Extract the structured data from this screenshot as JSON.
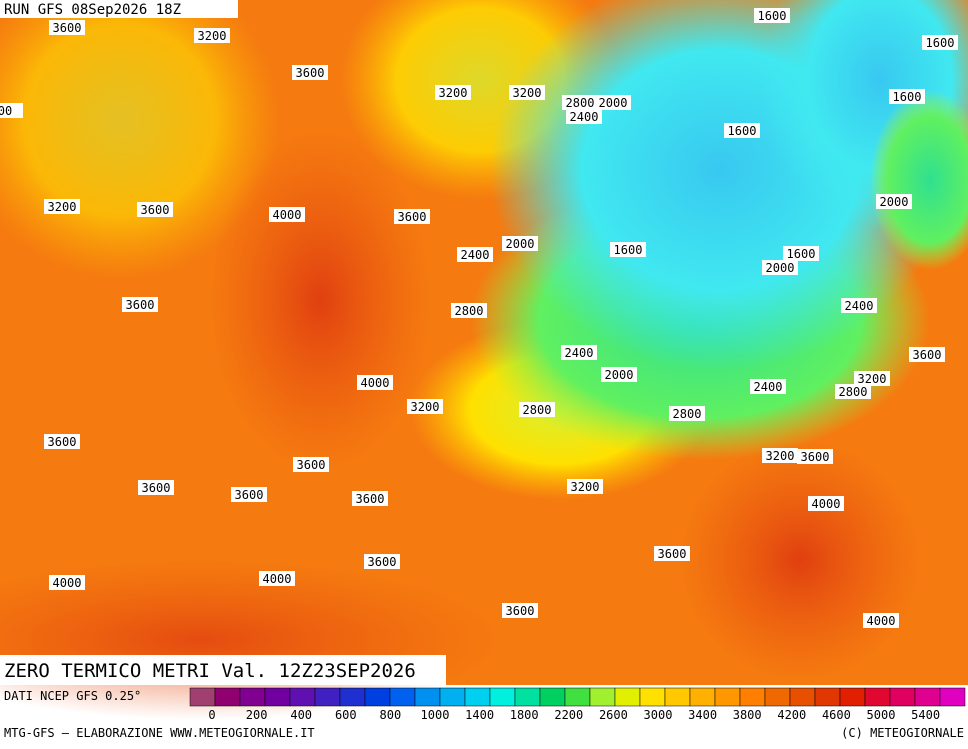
{
  "header": "RUN GFS 08Sep2026 18Z",
  "title": "ZERO TERMICO METRI Val. 12Z23SEP2026",
  "source": "DATI NCEP GFS 0.25°",
  "credit": "MTG-GFS — ELABORAZIONE WWW.METEOGIORNALE.IT",
  "copyright": "(C) METEOGIORNALE",
  "contour_labels": [
    3600,
    3200,
    3600,
    3200,
    3200,
    2800,
    2000,
    2400,
    1600,
    1600,
    1600,
    1600,
    "00",
    3200,
    3600,
    4000,
    3600,
    2000,
    2400,
    2000,
    1600,
    1600,
    2000,
    3600,
    2800,
    2400,
    2400,
    3600,
    4000,
    2000,
    2400,
    3200,
    2800,
    3200,
    2800,
    2800,
    3600,
    3600,
    3200,
    3600,
    3600,
    3600,
    3600,
    3200,
    4000,
    3600,
    3600,
    4000,
    4000,
    3600,
    4000
  ],
  "legend": {
    "ticks": [
      0,
      200,
      400,
      600,
      800,
      1000,
      1400,
      1800,
      2200,
      2600,
      3000,
      3400,
      3800,
      4200,
      4600,
      5000,
      5400
    ],
    "colors": [
      "#a04070",
      "#900070",
      "#800090",
      "#7000a0",
      "#6010b0",
      "#4020c0",
      "#2030d0",
      "#0040e0",
      "#0060f0",
      "#0090f0",
      "#00b0f0",
      "#00d0f0",
      "#00f0e0",
      "#00e0a0",
      "#00d060",
      "#40e040",
      "#a0f030",
      "#e0f000",
      "#ffe000",
      "#ffc800",
      "#ffb000",
      "#ff9800",
      "#ff8000",
      "#f06800",
      "#e85000",
      "#e03800",
      "#e02000",
      "#e00830",
      "#e00060",
      "#e00090",
      "#e000c0"
    ]
  }
}
